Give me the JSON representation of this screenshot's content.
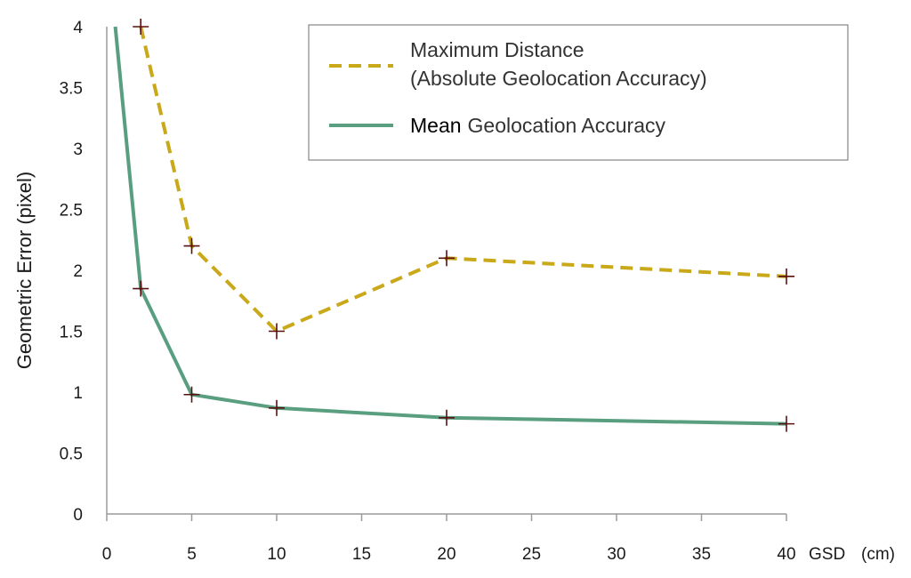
{
  "chart_data": {
    "type": "line",
    "xlabel": "GSD",
    "xunit": "(cm)",
    "ylabel": "Geometric Error (pixel)",
    "xlim": [
      0,
      40
    ],
    "ylim": [
      0,
      4
    ],
    "x_ticks": [
      "0",
      "5",
      "10",
      "15",
      "20",
      "25",
      "30",
      "35",
      "40"
    ],
    "y_ticks": [
      "0",
      "0.5",
      "1",
      "1.5",
      "2",
      "2.5",
      "3",
      "3.5",
      "4"
    ],
    "grid": false,
    "legend_position": "top-right",
    "series": [
      {
        "name_lines": [
          "Maximum Distance",
          "(Absolute Geolocation Accuracy)"
        ],
        "style": "dashed",
        "color": "#c9a81a",
        "x": [
          2,
          5,
          10,
          20,
          40
        ],
        "y": [
          4.0,
          2.2,
          1.5,
          2.1,
          1.95
        ]
      },
      {
        "name_bold": "Mean",
        "name_rest": "Geolocation Accuracy",
        "style": "solid",
        "color": "#5a9e80",
        "x": [
          0.5,
          2,
          5,
          10,
          20,
          40
        ],
        "y": [
          4.0,
          1.85,
          0.98,
          0.87,
          0.79,
          0.74
        ]
      }
    ],
    "marker_color": "#5a1010"
  }
}
